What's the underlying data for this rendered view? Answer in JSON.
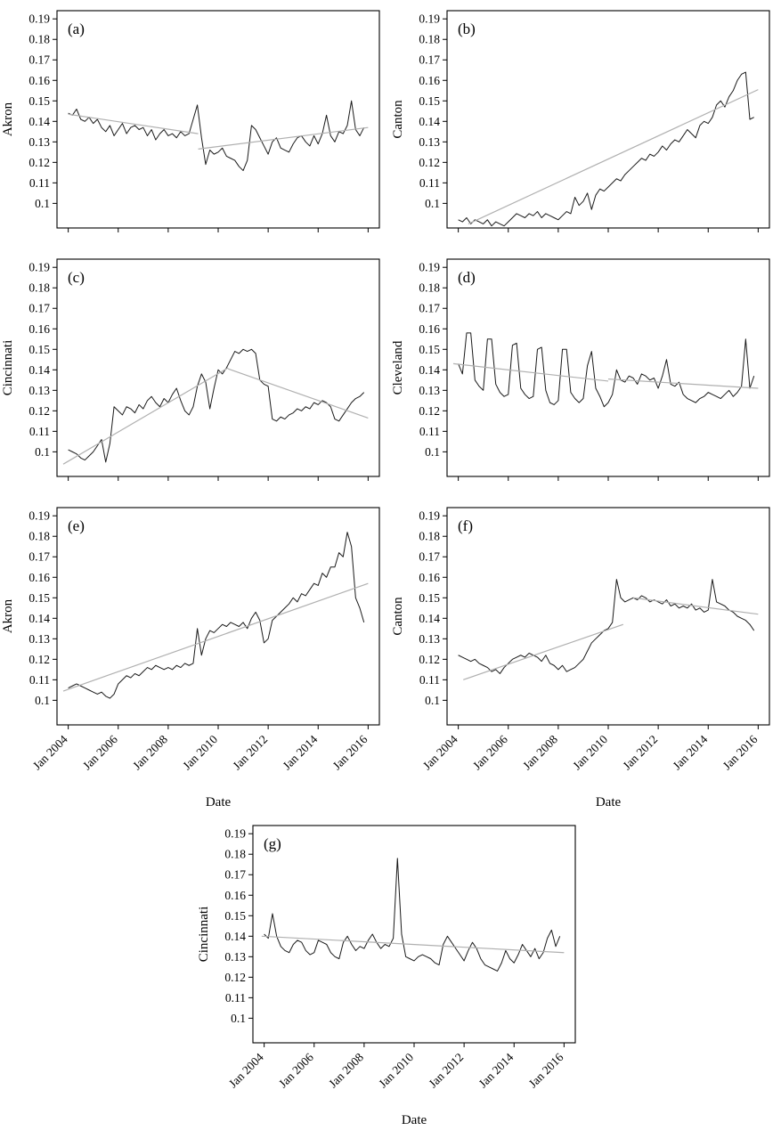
{
  "figure": {
    "background": "#ffffff",
    "line_color": "#1a1a1a",
    "trend_color": "#b0b0b0",
    "axis_color": "#000000"
  },
  "axes": {
    "ylim": [
      0.088,
      0.194
    ],
    "xlim": [
      2003.55,
      2016.45
    ],
    "yticks": [
      {
        "v": 0.19,
        "l": "0.19"
      },
      {
        "v": 0.18,
        "l": "0.18"
      },
      {
        "v": 0.17,
        "l": "0.17"
      },
      {
        "v": 0.16,
        "l": "0.16"
      },
      {
        "v": 0.15,
        "l": "0.15"
      },
      {
        "v": 0.14,
        "l": "0.14"
      },
      {
        "v": 0.13,
        "l": "0.13"
      },
      {
        "v": 0.12,
        "l": "0.12"
      },
      {
        "v": 0.11,
        "l": "0.11"
      },
      {
        "v": 0.1,
        "l": "0.1"
      }
    ],
    "xticks": [
      {
        "v": 2004,
        "l": "Jan 2004"
      },
      {
        "v": 2006,
        "l": "Jan 2006"
      },
      {
        "v": 2008,
        "l": "Jan 2008"
      },
      {
        "v": 2010,
        "l": "Jan 2010"
      },
      {
        "v": 2012,
        "l": "Jan 2012"
      },
      {
        "v": 2014,
        "l": "Jan 2014"
      },
      {
        "v": 2016,
        "l": "Jan 2016"
      }
    ],
    "xlabel": "Date"
  },
  "chart_data": [
    {
      "type": "line",
      "panel": "(a)",
      "ylabel": "Akron",
      "x_start": 2004.0,
      "x_step": 0.166667,
      "show_x_tick_labels": false,
      "xlabel": "",
      "values": [
        0.144,
        0.143,
        0.146,
        0.141,
        0.14,
        0.142,
        0.139,
        0.141,
        0.137,
        0.135,
        0.138,
        0.133,
        0.136,
        0.139,
        0.134,
        0.137,
        0.138,
        0.136,
        0.137,
        0.133,
        0.136,
        0.131,
        0.134,
        0.136,
        0.133,
        0.134,
        0.132,
        0.135,
        0.133,
        0.134,
        0.141,
        0.148,
        0.132,
        0.119,
        0.126,
        0.124,
        0.125,
        0.127,
        0.123,
        0.122,
        0.121,
        0.118,
        0.116,
        0.121,
        0.138,
        0.136,
        0.132,
        0.128,
        0.124,
        0.13,
        0.132,
        0.127,
        0.126,
        0.125,
        0.129,
        0.132,
        0.133,
        0.13,
        0.128,
        0.133,
        0.129,
        0.134,
        0.143,
        0.133,
        0.13,
        0.135,
        0.134,
        0.138,
        0.15,
        0.136,
        0.133,
        0.137
      ],
      "trend_segments": [
        {
          "x1": 2004.0,
          "y1": 0.1435,
          "x2": 2009.2,
          "y2": 0.134
        },
        {
          "x1": 2009.2,
          "y1": 0.1265,
          "x2": 2016.0,
          "y2": 0.137
        }
      ]
    },
    {
      "type": "line",
      "panel": "(b)",
      "ylabel": "Canton",
      "x_start": 2004.0,
      "x_step": 0.166667,
      "show_x_tick_labels": false,
      "xlabel": "",
      "values": [
        0.092,
        0.091,
        0.093,
        0.09,
        0.092,
        0.091,
        0.09,
        0.092,
        0.089,
        0.091,
        0.09,
        0.089,
        0.091,
        0.093,
        0.095,
        0.094,
        0.093,
        0.095,
        0.094,
        0.096,
        0.093,
        0.095,
        0.094,
        0.093,
        0.092,
        0.094,
        0.096,
        0.095,
        0.103,
        0.099,
        0.101,
        0.105,
        0.097,
        0.104,
        0.107,
        0.106,
        0.108,
        0.11,
        0.112,
        0.111,
        0.114,
        0.116,
        0.118,
        0.12,
        0.122,
        0.121,
        0.124,
        0.123,
        0.125,
        0.128,
        0.126,
        0.129,
        0.131,
        0.13,
        0.133,
        0.136,
        0.134,
        0.132,
        0.138,
        0.14,
        0.139,
        0.142,
        0.148,
        0.15,
        0.147,
        0.152,
        0.155,
        0.16,
        0.163,
        0.164,
        0.141,
        0.142
      ],
      "trend_segments": [
        {
          "x1": 2004.4,
          "y1": 0.09,
          "x2": 2016.0,
          "y2": 0.1555
        }
      ]
    },
    {
      "type": "line",
      "panel": "(c)",
      "ylabel": "Cincinnati",
      "x_start": 2004.0,
      "x_step": 0.166667,
      "show_x_tick_labels": false,
      "xlabel": "",
      "values": [
        0.101,
        0.1,
        0.099,
        0.097,
        0.096,
        0.098,
        0.1,
        0.103,
        0.106,
        0.095,
        0.104,
        0.122,
        0.12,
        0.118,
        0.122,
        0.121,
        0.119,
        0.123,
        0.121,
        0.125,
        0.127,
        0.124,
        0.122,
        0.126,
        0.124,
        0.128,
        0.131,
        0.125,
        0.12,
        0.118,
        0.122,
        0.132,
        0.138,
        0.134,
        0.121,
        0.131,
        0.14,
        0.138,
        0.141,
        0.145,
        0.149,
        0.148,
        0.15,
        0.149,
        0.15,
        0.148,
        0.135,
        0.133,
        0.132,
        0.116,
        0.115,
        0.117,
        0.116,
        0.118,
        0.119,
        0.121,
        0.12,
        0.122,
        0.121,
        0.124,
        0.123,
        0.125,
        0.124,
        0.122,
        0.116,
        0.115,
        0.118,
        0.121,
        0.124,
        0.126,
        0.127,
        0.129
      ],
      "trend_segments": [
        {
          "x1": 2003.8,
          "y1": 0.094,
          "x2": 2010.4,
          "y2": 0.141
        },
        {
          "x1": 2010.4,
          "y1": 0.1405,
          "x2": 2016.0,
          "y2": 0.1165
        }
      ]
    },
    {
      "type": "line",
      "panel": "(d)",
      "ylabel": "Cleveland",
      "x_start": 2004.0,
      "x_step": 0.166667,
      "show_x_tick_labels": false,
      "xlabel": "",
      "values": [
        0.143,
        0.138,
        0.158,
        0.158,
        0.135,
        0.132,
        0.13,
        0.155,
        0.155,
        0.133,
        0.129,
        0.127,
        0.128,
        0.152,
        0.153,
        0.131,
        0.128,
        0.126,
        0.127,
        0.15,
        0.151,
        0.13,
        0.124,
        0.123,
        0.125,
        0.15,
        0.15,
        0.129,
        0.126,
        0.124,
        0.126,
        0.142,
        0.149,
        0.131,
        0.127,
        0.122,
        0.124,
        0.128,
        0.14,
        0.135,
        0.134,
        0.137,
        0.136,
        0.133,
        0.138,
        0.137,
        0.135,
        0.136,
        0.131,
        0.137,
        0.145,
        0.133,
        0.132,
        0.134,
        0.128,
        0.126,
        0.125,
        0.124,
        0.126,
        0.127,
        0.129,
        0.128,
        0.127,
        0.126,
        0.128,
        0.13,
        0.127,
        0.129,
        0.132,
        0.155,
        0.131,
        0.137
      ],
      "trend_segments": [
        {
          "x1": 2003.8,
          "y1": 0.143,
          "x2": 2010.0,
          "y2": 0.1345
        },
        {
          "x1": 2010.0,
          "y1": 0.1355,
          "x2": 2016.0,
          "y2": 0.131
        }
      ]
    },
    {
      "type": "line",
      "panel": "(e)",
      "ylabel": "Akron",
      "x_start": 2004.0,
      "x_step": 0.166667,
      "show_x_tick_labels": true,
      "xlabel": "Date",
      "values": [
        0.106,
        0.107,
        0.108,
        0.107,
        0.106,
        0.105,
        0.104,
        0.103,
        0.104,
        0.102,
        0.101,
        0.103,
        0.108,
        0.11,
        0.112,
        0.111,
        0.113,
        0.112,
        0.114,
        0.116,
        0.115,
        0.117,
        0.116,
        0.115,
        0.116,
        0.115,
        0.117,
        0.116,
        0.118,
        0.117,
        0.118,
        0.135,
        0.122,
        0.13,
        0.134,
        0.133,
        0.135,
        0.137,
        0.136,
        0.138,
        0.137,
        0.136,
        0.138,
        0.135,
        0.14,
        0.143,
        0.139,
        0.128,
        0.13,
        0.139,
        0.141,
        0.143,
        0.145,
        0.147,
        0.15,
        0.148,
        0.152,
        0.151,
        0.154,
        0.157,
        0.156,
        0.162,
        0.16,
        0.165,
        0.165,
        0.172,
        0.17,
        0.182,
        0.175,
        0.15,
        0.145,
        0.138
      ],
      "trend_segments": [
        {
          "x1": 2003.8,
          "y1": 0.1045,
          "x2": 2016.0,
          "y2": 0.157
        }
      ]
    },
    {
      "type": "line",
      "panel": "(f)",
      "ylabel": "Canton",
      "x_start": 2004.0,
      "x_step": 0.166667,
      "show_x_tick_labels": true,
      "xlabel": "Date",
      "values": [
        0.122,
        0.121,
        0.12,
        0.119,
        0.12,
        0.118,
        0.117,
        0.116,
        0.114,
        0.115,
        0.113,
        0.116,
        0.118,
        0.12,
        0.121,
        0.122,
        0.121,
        0.123,
        0.122,
        0.121,
        0.119,
        0.122,
        0.118,
        0.117,
        0.115,
        0.117,
        0.114,
        0.115,
        0.116,
        0.118,
        0.12,
        0.124,
        0.128,
        0.13,
        0.132,
        0.134,
        0.135,
        0.138,
        0.159,
        0.15,
        0.148,
        0.149,
        0.15,
        0.149,
        0.151,
        0.15,
        0.148,
        0.149,
        0.148,
        0.147,
        0.149,
        0.146,
        0.147,
        0.145,
        0.146,
        0.145,
        0.147,
        0.144,
        0.145,
        0.143,
        0.144,
        0.159,
        0.148,
        0.147,
        0.146,
        0.144,
        0.143,
        0.141,
        0.14,
        0.139,
        0.137,
        0.134
      ],
      "trend_segments": [
        {
          "x1": 2004.2,
          "y1": 0.11,
          "x2": 2010.6,
          "y2": 0.137
        },
        {
          "x1": 2011.0,
          "y1": 0.15,
          "x2": 2016.0,
          "y2": 0.142
        }
      ]
    },
    {
      "type": "line",
      "panel": "(g)",
      "ylabel": "Cincinnati",
      "x_start": 2004.0,
      "x_step": 0.166667,
      "show_x_tick_labels": true,
      "xlabel": "Date",
      "values": [
        0.141,
        0.139,
        0.151,
        0.14,
        0.135,
        0.133,
        0.132,
        0.136,
        0.138,
        0.137,
        0.133,
        0.131,
        0.132,
        0.138,
        0.137,
        0.136,
        0.132,
        0.13,
        0.129,
        0.137,
        0.14,
        0.136,
        0.133,
        0.135,
        0.134,
        0.138,
        0.141,
        0.137,
        0.134,
        0.136,
        0.135,
        0.139,
        0.178,
        0.141,
        0.13,
        0.129,
        0.128,
        0.13,
        0.131,
        0.13,
        0.129,
        0.127,
        0.126,
        0.136,
        0.14,
        0.137,
        0.134,
        0.131,
        0.128,
        0.133,
        0.137,
        0.134,
        0.129,
        0.126,
        0.125,
        0.124,
        0.123,
        0.127,
        0.133,
        0.129,
        0.127,
        0.131,
        0.136,
        0.133,
        0.13,
        0.134,
        0.129,
        0.132,
        0.139,
        0.143,
        0.135,
        0.14
      ],
      "trend_segments": [
        {
          "x1": 2003.9,
          "y1": 0.14,
          "x2": 2016.0,
          "y2": 0.132
        }
      ]
    }
  ]
}
